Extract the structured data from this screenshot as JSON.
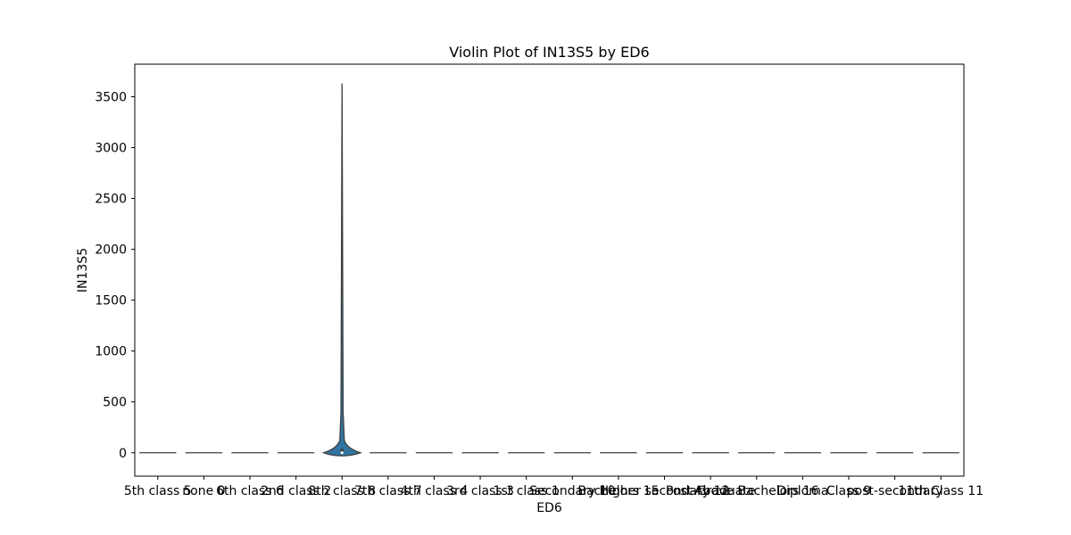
{
  "chart_data": {
    "type": "violin",
    "title": "Violin Plot of IN13S5 by ED6",
    "xlabel": "ED6",
    "ylabel": "IN13S5",
    "categories": [
      "5th class 5",
      "none 0",
      "6th class 6",
      "2nd class 2",
      "8th class 8",
      "7th class 7",
      "4th class 4",
      "3rd class 3",
      "1st class 1",
      "Secondary 10",
      "Bachelors 15",
      "Higher secondary 12",
      "Post-Graduate",
      "Above Bachelors 16",
      "Diploma",
      "Class 9",
      "post-secondary",
      "11th Class 11"
    ],
    "violins": [
      {
        "min": 0,
        "max": 0,
        "median": 0,
        "max_density_halfwidth": 0
      },
      {
        "min": 0,
        "max": 0,
        "median": 0,
        "max_density_halfwidth": 0
      },
      {
        "min": 0,
        "max": 0,
        "median": 0,
        "max_density_halfwidth": 0
      },
      {
        "min": 0,
        "max": 0,
        "median": 0,
        "max_density_halfwidth": 0
      },
      {
        "min": -30,
        "max": 3630,
        "median": 0,
        "max_density_halfwidth": 0.4
      },
      {
        "min": 0,
        "max": 0,
        "median": 0,
        "max_density_halfwidth": 0
      },
      {
        "min": 0,
        "max": 0,
        "median": 0,
        "max_density_halfwidth": 0
      },
      {
        "min": 0,
        "max": 0,
        "median": 0,
        "max_density_halfwidth": 0
      },
      {
        "min": 0,
        "max": 0,
        "median": 0,
        "max_density_halfwidth": 0
      },
      {
        "min": 0,
        "max": 0,
        "median": 0,
        "max_density_halfwidth": 0
      },
      {
        "min": 0,
        "max": 0,
        "median": 0,
        "max_density_halfwidth": 0
      },
      {
        "min": 0,
        "max": 0,
        "median": 0,
        "max_density_halfwidth": 0
      },
      {
        "min": 0,
        "max": 0,
        "median": 0,
        "max_density_halfwidth": 0
      },
      {
        "min": 0,
        "max": 0,
        "median": 0,
        "max_density_halfwidth": 0
      },
      {
        "min": 0,
        "max": 0,
        "median": 0,
        "max_density_halfwidth": 0
      },
      {
        "min": 0,
        "max": 0,
        "median": 0,
        "max_density_halfwidth": 0
      },
      {
        "min": 0,
        "max": 0,
        "median": 0,
        "max_density_halfwidth": 0
      },
      {
        "min": 0,
        "max": 0,
        "median": 0,
        "max_density_halfwidth": 0
      }
    ],
    "yticks": [
      0,
      500,
      1000,
      1500,
      2000,
      2500,
      3000,
      3500
    ],
    "ylim": [
      -230,
      3820
    ],
    "grid": false,
    "colors": {
      "fill": "#3274a1",
      "line": "#3f3f3f",
      "axis": "#000000"
    }
  }
}
